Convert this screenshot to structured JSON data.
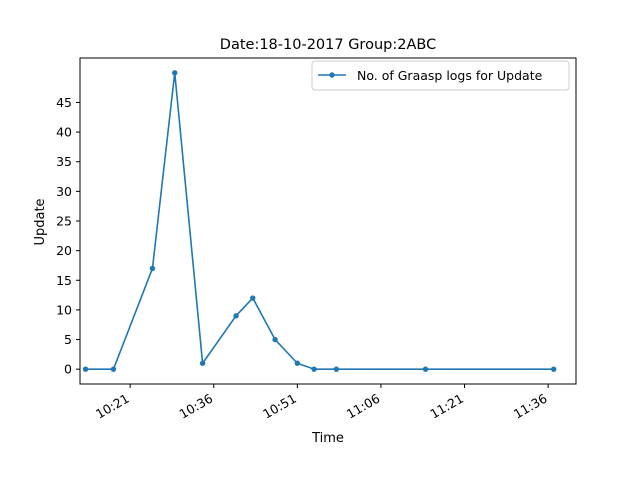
{
  "chart_data": {
    "type": "line",
    "title": "Date:18-10-2017  Group:2ABC",
    "xlabel": "Time",
    "ylabel": "Update",
    "x_ticks": [
      "10:21",
      "10:36",
      "10:51",
      "11:06",
      "11:21",
      "11:36"
    ],
    "y_ticks": [
      0,
      5,
      10,
      15,
      20,
      25,
      30,
      35,
      40,
      45
    ],
    "xlim": [
      "10:12",
      "11:41"
    ],
    "ylim": [
      -2.5,
      52.5
    ],
    "legend_position": "top-right",
    "grid": false,
    "series": [
      {
        "name": "No. of Graasp logs for Update",
        "color": "#1f77b4",
        "marker": "circle",
        "x": [
          "10:13",
          "10:18",
          "10:25",
          "10:29",
          "10:34",
          "10:40",
          "10:43",
          "10:47",
          "10:51",
          "10:54",
          "10:58",
          "11:14",
          "11:37"
        ],
        "values": [
          0,
          0,
          17,
          50,
          1,
          9,
          12,
          5,
          1,
          0,
          0,
          0,
          0
        ]
      }
    ]
  }
}
